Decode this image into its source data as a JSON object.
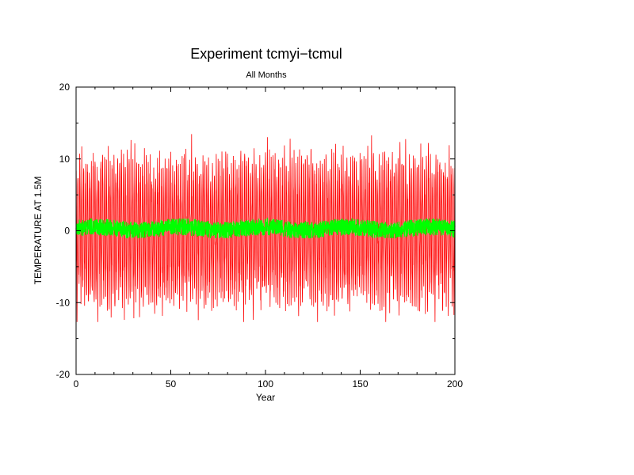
{
  "chart_data": {
    "type": "line",
    "title": "Experiment tcmyi−tcmul",
    "subtitle": "All Months",
    "xlabel": "Year",
    "ylabel": "TEMPERATURE AT 1.5M",
    "xlim": [
      0,
      200
    ],
    "ylim": [
      -20,
      20
    ],
    "x_ticks": [
      0,
      50,
      100,
      150,
      200
    ],
    "y_ticks": [
      -20,
      -10,
      0,
      10,
      20
    ],
    "grid": false,
    "legend": "none",
    "colors": {
      "series_monthly": "#ff0000",
      "series_mean": "#00ff00",
      "axes": "#000000"
    },
    "series": [
      {
        "color": "#ff0000",
        "sampling": "monthly",
        "x_start": 0,
        "x_end": 200,
        "amplitude": 11,
        "min": -12.7,
        "max": 14
      },
      {
        "color": "#00ff00",
        "sampling": "monthly",
        "x_start": 0,
        "x_end": 200,
        "mean": 0.3,
        "min": -1,
        "max": 1.8
      }
    ]
  }
}
